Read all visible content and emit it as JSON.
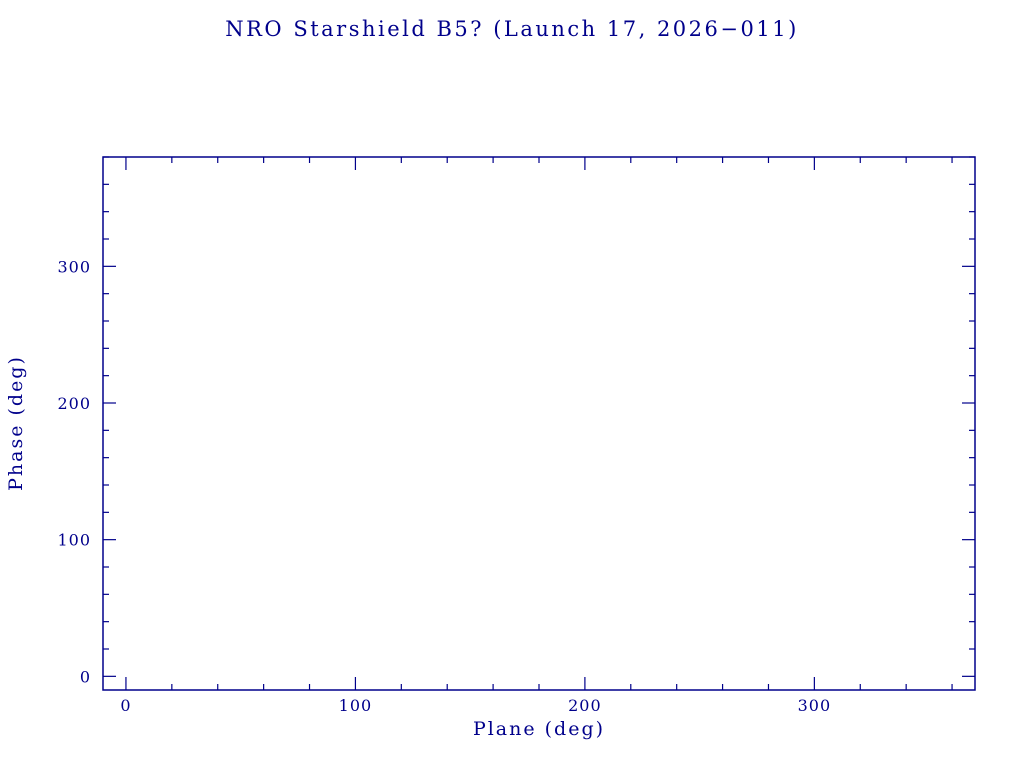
{
  "chart_data": {
    "type": "scatter",
    "title": "NRO Starshield B5? (Launch 17, 2026−011)",
    "xlabel": "Plane (deg)",
    "ylabel": "Phase (deg)",
    "xlim": [
      -10,
      370
    ],
    "ylim": [
      -10,
      380
    ],
    "xticks": [
      0,
      100,
      200,
      300
    ],
    "yticks": [
      0,
      100,
      200,
      300
    ],
    "minor_tick_interval": 20,
    "series": [],
    "grid": false,
    "legend": "none",
    "frame_color": "#00008B",
    "text_color": "#00008B",
    "background": "#FFFFFF"
  }
}
